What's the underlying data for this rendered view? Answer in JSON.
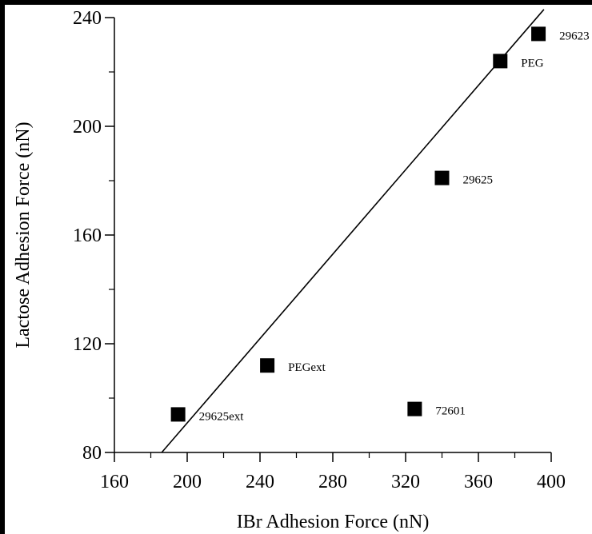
{
  "chart_data": {
    "type": "scatter",
    "title": "",
    "xlabel": "IBr Adhesion Force (nN)",
    "ylabel": "Lactose Adhesion Force (nN)",
    "xlim": [
      160,
      400
    ],
    "ylim": [
      80,
      240
    ],
    "x_ticks": [
      160,
      200,
      240,
      280,
      320,
      360,
      400
    ],
    "y_ticks": [
      80,
      120,
      160,
      200,
      240
    ],
    "x_minor_step": 20,
    "y_minor_step": 20,
    "grid": false,
    "legend": "none",
    "marker": "filled-square",
    "colors": {
      "marker": "#000000",
      "line": "#000000",
      "background": "#ffffff",
      "frame": "#000000"
    },
    "points": [
      {
        "label": "29623",
        "x": 393,
        "y": 234
      },
      {
        "label": "PEG",
        "x": 372,
        "y": 224
      },
      {
        "label": "29625",
        "x": 340,
        "y": 181
      },
      {
        "label": "PEGext",
        "x": 244,
        "y": 112
      },
      {
        "label": "29625ext",
        "x": 195,
        "y": 94
      },
      {
        "label": "72601",
        "x": 325,
        "y": 96
      }
    ],
    "fit_line": {
      "type": "linear",
      "x_start": 186,
      "y_start": 80,
      "x_end": 396,
      "y_end": 243
    }
  }
}
